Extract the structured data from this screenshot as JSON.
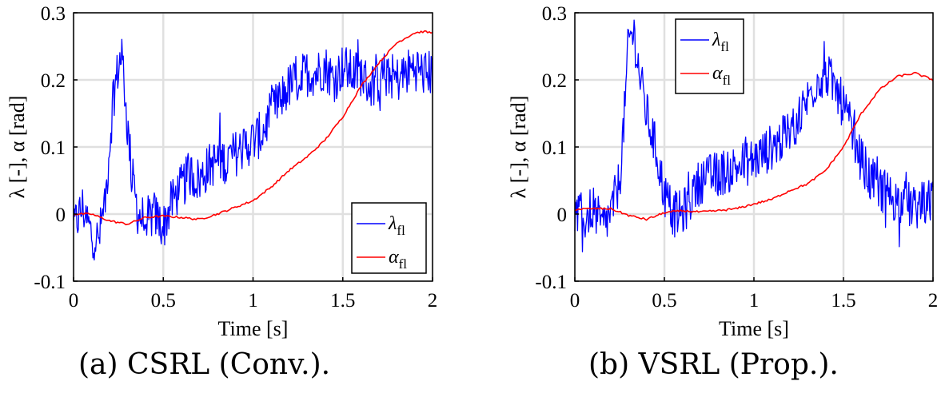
{
  "captions": [
    "(a) CSRL (Conv.).",
    "(b) VSRL (Prop.)."
  ],
  "chart_data": [
    {
      "type": "line",
      "xlabel": "Time [s]",
      "ylabel": "λ [-], α [rad]",
      "xlim": [
        0,
        2
      ],
      "ylim": [
        -0.1,
        0.3
      ],
      "xticks": [
        "0",
        "0.5",
        "1",
        "1.5",
        "2"
      ],
      "yticks": [
        "-0.1",
        "0",
        "0.1",
        "0.2",
        "0.3"
      ],
      "grid": true,
      "legend_position": "bottom-right",
      "series": [
        {
          "name": "λfl",
          "color": "#0000ff",
          "x": [
            0,
            0.05,
            0.1,
            0.14,
            0.18,
            0.2,
            0.22,
            0.25,
            0.27,
            0.3,
            0.33,
            0.36,
            0.4,
            0.45,
            0.5,
            0.55,
            0.6,
            0.65,
            0.7,
            0.75,
            0.8,
            0.85,
            0.9,
            0.95,
            1.0,
            1.05,
            1.1,
            1.15,
            1.2,
            1.25,
            1.3,
            1.35,
            1.4,
            1.45,
            1.5,
            1.55,
            1.6,
            1.65,
            1.7,
            1.75,
            1.8,
            1.85,
            1.9,
            1.95,
            2.0
          ],
          "y": [
            -0.02,
            0.01,
            -0.03,
            -0.04,
            0.03,
            0.1,
            0.17,
            0.22,
            0.24,
            0.13,
            0.05,
            0.0,
            -0.01,
            0.0,
            -0.02,
            0.02,
            0.04,
            0.06,
            0.05,
            0.07,
            0.08,
            0.08,
            0.09,
            0.1,
            0.11,
            0.12,
            0.15,
            0.17,
            0.19,
            0.2,
            0.21,
            0.21,
            0.22,
            0.2,
            0.22,
            0.21,
            0.21,
            0.19,
            0.2,
            0.21,
            0.2,
            0.21,
            0.22,
            0.21,
            0.21
          ]
        },
        {
          "name": "αfl",
          "color": "#ff0000",
          "x": [
            0,
            0.1,
            0.2,
            0.3,
            0.35,
            0.4,
            0.5,
            0.6,
            0.7,
            0.8,
            0.9,
            1.0,
            1.1,
            1.2,
            1.3,
            1.4,
            1.5,
            1.6,
            1.7,
            1.8,
            1.9,
            1.95,
            2.0
          ],
          "y": [
            0.0,
            0.0,
            -0.01,
            -0.015,
            -0.01,
            -0.005,
            -0.003,
            -0.005,
            -0.008,
            0.0,
            0.01,
            0.02,
            0.04,
            0.065,
            0.085,
            0.11,
            0.145,
            0.19,
            0.225,
            0.255,
            0.27,
            0.272,
            0.27
          ]
        }
      ]
    },
    {
      "type": "line",
      "xlabel": "Time [s]",
      "ylabel": "λ [-], α [rad]",
      "xlim": [
        0,
        2
      ],
      "ylim": [
        -0.1,
        0.3
      ],
      "xticks": [
        "0",
        "0.5",
        "1",
        "1.5",
        "2"
      ],
      "yticks": [
        "-0.1",
        "0",
        "0.1",
        "0.2",
        "0.3"
      ],
      "grid": true,
      "legend_position": "top-center",
      "series": [
        {
          "name": "λfl",
          "color": "#0000ff",
          "x": [
            0,
            0.05,
            0.1,
            0.15,
            0.2,
            0.25,
            0.28,
            0.3,
            0.33,
            0.36,
            0.4,
            0.45,
            0.5,
            0.55,
            0.6,
            0.7,
            0.8,
            0.9,
            1.0,
            1.1,
            1.2,
            1.3,
            1.35,
            1.4,
            1.45,
            1.5,
            1.55,
            1.6,
            1.65,
            1.7,
            1.8,
            1.9,
            2.0
          ],
          "y": [
            0.0,
            -0.01,
            0.01,
            -0.02,
            0.0,
            0.05,
            0.16,
            0.26,
            0.27,
            0.21,
            0.15,
            0.1,
            0.03,
            0.0,
            0.0,
            0.05,
            0.06,
            0.07,
            0.08,
            0.1,
            0.12,
            0.17,
            0.2,
            0.21,
            0.19,
            0.16,
            0.12,
            0.08,
            0.05,
            0.04,
            0.02,
            0.01,
            0.02
          ]
        },
        {
          "name": "αfl",
          "color": "#ff0000",
          "x": [
            0,
            0.1,
            0.2,
            0.3,
            0.4,
            0.5,
            0.6,
            0.7,
            0.8,
            0.9,
            1.0,
            1.1,
            1.2,
            1.3,
            1.4,
            1.5,
            1.6,
            1.7,
            1.8,
            1.9,
            1.95,
            2.0
          ],
          "y": [
            0.007,
            0.008,
            0.008,
            -0.002,
            -0.008,
            0.002,
            0.005,
            0.003,
            0.005,
            0.008,
            0.015,
            0.022,
            0.035,
            0.045,
            0.065,
            0.1,
            0.15,
            0.185,
            0.205,
            0.21,
            0.205,
            0.2
          ]
        }
      ]
    }
  ]
}
